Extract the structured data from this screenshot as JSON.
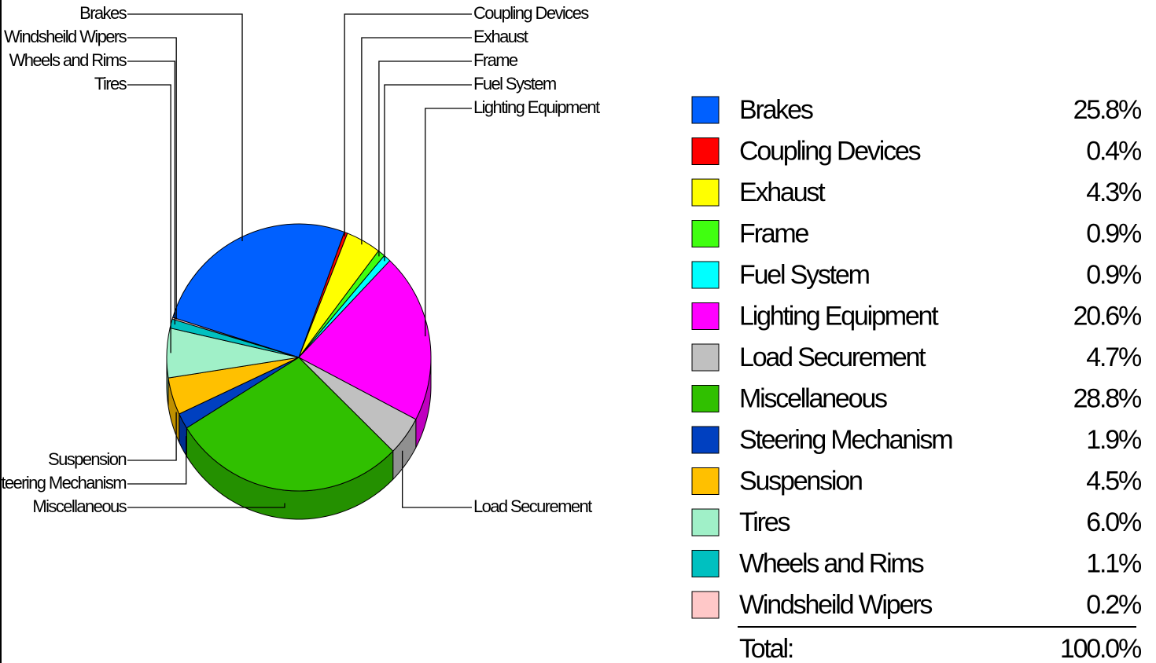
{
  "chart_data": {
    "type": "pie3d",
    "categories": [
      "Brakes",
      "Coupling Devices",
      "Exhaust",
      "Frame",
      "Fuel System",
      "Lighting Equipment",
      "Load Securement",
      "Miscellaneous",
      "Steering Mechanism",
      "Suspension",
      "Tires",
      "Wheels and Rims",
      "Windsheild Wipers"
    ],
    "values": [
      25.8,
      0.4,
      4.3,
      0.9,
      0.9,
      20.6,
      4.7,
      28.8,
      1.9,
      4.5,
      6.0,
      1.1,
      0.2
    ],
    "value_labels": [
      "25.8%",
      "0.4%",
      "4.3%",
      "0.9%",
      "0.9%",
      "20.6%",
      "4.7%",
      "28.8%",
      "1.9%",
      "4.5%",
      "6.0%",
      "1.1%",
      "0.2%"
    ],
    "colors": [
      "#0060ff",
      "#ff0000",
      "#ffff00",
      "#40ff10",
      "#00ffff",
      "#ff00ff",
      "#c0c0c0",
      "#30c000",
      "#0040c0",
      "#ffc000",
      "#a0f0c8",
      "#00c0c0",
      "#ffc8c8"
    ],
    "total_label": "Total:",
    "total_value": "100.0%"
  }
}
